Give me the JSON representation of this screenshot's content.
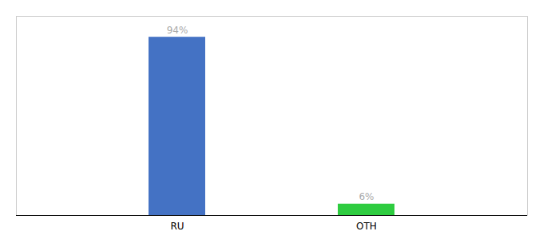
{
  "chart_data": {
    "type": "bar",
    "categories": [
      "RU",
      "OTH"
    ],
    "values": [
      94,
      6
    ],
    "value_labels": [
      "94%",
      "6%"
    ],
    "colors": [
      "#4472c4",
      "#2ecc40"
    ],
    "ylim": [
      0,
      105
    ],
    "data_labels": true,
    "tick_labels": "x",
    "grid": false
  }
}
